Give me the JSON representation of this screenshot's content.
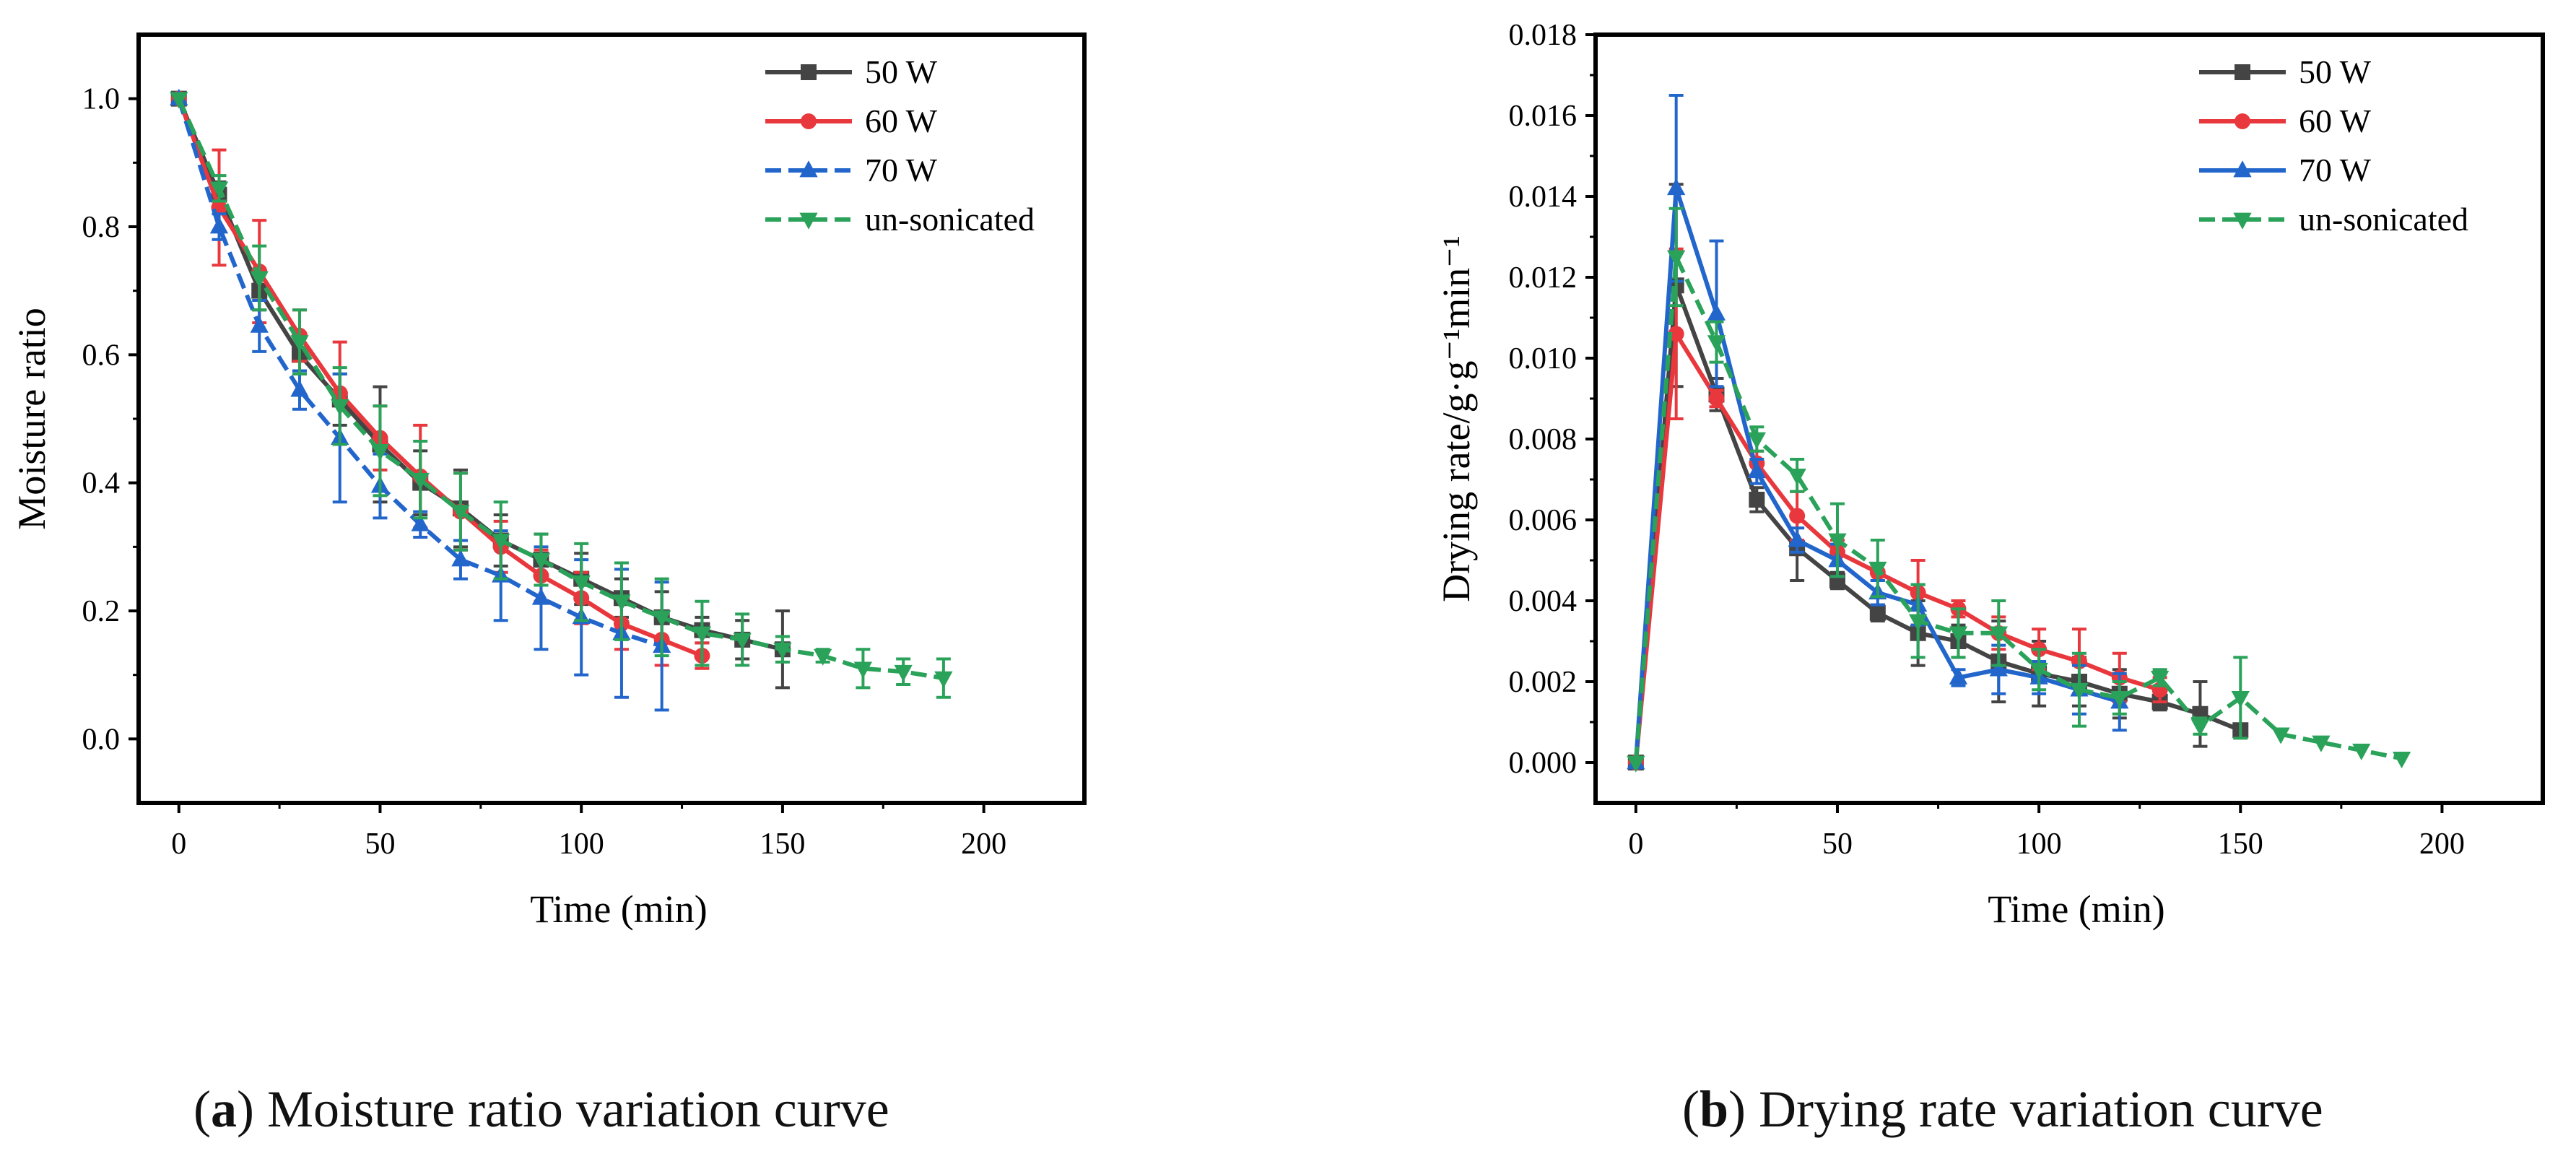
{
  "captions": {
    "a": {
      "open": "(",
      "letter": "a",
      "close": ")",
      "text": " Moisture ratio variation curve"
    },
    "b": {
      "open": "(",
      "letter": "b",
      "close": ")",
      "text": " Drying rate variation curve"
    }
  },
  "chart_data": [
    {
      "id": "a",
      "type": "line",
      "title": "Moisture ratio variation curve",
      "xlabel": "Time (min)",
      "ylabel": "Moisture ratio",
      "xlim": [
        -10,
        225
      ],
      "ylim": [
        -0.1,
        1.1
      ],
      "xticks": [
        0,
        50,
        100,
        150,
        200
      ],
      "xtick_labels": [
        "0",
        "50",
        "100",
        "150",
        "200"
      ],
      "yticks": [
        0.0,
        0.2,
        0.4,
        0.6,
        0.8,
        1.0
      ],
      "ytick_labels": [
        "0.0",
        "0.2",
        "0.4",
        "0.6",
        "0.8",
        "1.0"
      ],
      "legend_position": "top-right",
      "series": [
        {
          "name": "50 W",
          "color": "#444444",
          "marker": "square",
          "dash": "solid",
          "x": [
            0,
            10,
            20,
            30,
            40,
            50,
            60,
            70,
            80,
            90,
            100,
            110,
            120,
            130,
            140,
            150
          ],
          "y": [
            1.0,
            0.85,
            0.7,
            0.6,
            0.53,
            0.46,
            0.4,
            0.36,
            0.31,
            0.28,
            0.25,
            0.22,
            0.19,
            0.17,
            0.155,
            0.14
          ],
          "err": [
            0,
            0.02,
            0.03,
            0.03,
            0.04,
            0.09,
            0.05,
            0.06,
            0.04,
            0.04,
            0.04,
            0.03,
            0.04,
            0.02,
            0.03,
            0.06
          ]
        },
        {
          "name": "60 W",
          "color": "#e8383d",
          "marker": "circle",
          "dash": "solid",
          "x": [
            0,
            10,
            20,
            30,
            40,
            50,
            60,
            70,
            80,
            90,
            100,
            110,
            120,
            130
          ],
          "y": [
            1.0,
            0.83,
            0.73,
            0.63,
            0.54,
            0.47,
            0.41,
            0.355,
            0.3,
            0.255,
            0.22,
            0.18,
            0.155,
            0.13
          ],
          "err": [
            0,
            0.09,
            0.08,
            0.04,
            0.08,
            0.05,
            0.08,
            0.06,
            0.04,
            0.04,
            0.04,
            0.04,
            0.04,
            0.02
          ]
        },
        {
          "name": "70 W",
          "color": "#2266cc",
          "marker": "triangle-up",
          "dash": "dashed",
          "x": [
            0,
            10,
            20,
            30,
            40,
            50,
            60,
            70,
            80,
            90,
            100,
            110,
            120
          ],
          "y": [
            1.0,
            0.8,
            0.645,
            0.545,
            0.47,
            0.395,
            0.335,
            0.28,
            0.255,
            0.22,
            0.19,
            0.165,
            0.145
          ],
          "err": [
            0,
            0.02,
            0.04,
            0.03,
            0.1,
            0.05,
            0.02,
            0.03,
            0.07,
            0.08,
            0.09,
            0.1,
            0.1
          ]
        },
        {
          "name": "un-sonicated",
          "color": "#2aa25a",
          "marker": "triangle-down",
          "dash": "dashed",
          "x": [
            0,
            10,
            20,
            30,
            40,
            50,
            60,
            70,
            80,
            90,
            100,
            110,
            120,
            130,
            140,
            150,
            160,
            170,
            180,
            190
          ],
          "y": [
            1.0,
            0.86,
            0.72,
            0.62,
            0.52,
            0.45,
            0.405,
            0.355,
            0.31,
            0.28,
            0.245,
            0.215,
            0.19,
            0.165,
            0.155,
            0.14,
            0.13,
            0.11,
            0.105,
            0.095
          ],
          "err": [
            0,
            0.02,
            0.05,
            0.05,
            0.06,
            0.07,
            0.06,
            0.06,
            0.06,
            0.04,
            0.06,
            0.06,
            0.06,
            0.05,
            0.04,
            0.02,
            0.01,
            0.03,
            0.02,
            0.03
          ]
        }
      ]
    },
    {
      "id": "b",
      "type": "line",
      "title": "Drying rate variation curve",
      "xlabel": "Time (min)",
      "ylabel": "Drying rate/g·g⁻¹min⁻¹",
      "xlim": [
        -10,
        225
      ],
      "ylim": [
        -0.001,
        0.018
      ],
      "xticks": [
        0,
        50,
        100,
        150,
        200
      ],
      "xtick_labels": [
        "0",
        "50",
        "100",
        "150",
        "200"
      ],
      "yticks": [
        0.0,
        0.002,
        0.004,
        0.006,
        0.008,
        0.01,
        0.012,
        0.014,
        0.016,
        0.018
      ],
      "ytick_labels": [
        "0.000",
        "0.002",
        "0.004",
        "0.006",
        "0.008",
        "0.010",
        "0.012",
        "0.014",
        "0.016",
        "0.018"
      ],
      "legend_position": "top-right",
      "series": [
        {
          "name": "50 W",
          "color": "#444444",
          "marker": "square",
          "dash": "solid",
          "x": [
            0,
            10,
            20,
            30,
            40,
            50,
            60,
            70,
            80,
            90,
            100,
            110,
            120,
            130,
            140,
            150
          ],
          "y": [
            0.0,
            0.0118,
            0.0091,
            0.0065,
            0.0053,
            0.0045,
            0.0037,
            0.0032,
            0.003,
            0.0025,
            0.0022,
            0.002,
            0.0017,
            0.0015,
            0.0012,
            0.0008
          ],
          "err": [
            0,
            0.0025,
            0.0004,
            0.0003,
            0.0008,
            0.0002,
            0.0002,
            0.0008,
            0.0004,
            0.001,
            0.0008,
            0.0006,
            0.0006,
            0.0002,
            0.0008,
            0.0001
          ]
        },
        {
          "name": "60 W",
          "color": "#e8383d",
          "marker": "circle",
          "dash": "solid",
          "x": [
            0,
            10,
            20,
            30,
            40,
            50,
            60,
            70,
            80,
            90,
            100,
            110,
            120,
            130
          ],
          "y": [
            0.0,
            0.0106,
            0.009,
            0.0074,
            0.0061,
            0.0052,
            0.0047,
            0.0042,
            0.0038,
            0.0032,
            0.0028,
            0.0025,
            0.0021,
            0.0018
          ],
          "err": [
            0,
            0.0021,
            0.0002,
            0.0003,
            0.0006,
            0.0003,
            0.0002,
            0.0008,
            0.0002,
            0.0004,
            0.0005,
            0.0008,
            0.0006,
            0.0003
          ]
        },
        {
          "name": "70 W",
          "color": "#2266cc",
          "marker": "triangle-up",
          "dash": "solid",
          "x": [
            0,
            10,
            20,
            30,
            40,
            50,
            60,
            70,
            80,
            90,
            100,
            110,
            120
          ],
          "y": [
            0.0,
            0.0142,
            0.0111,
            0.0072,
            0.0055,
            0.005,
            0.0042,
            0.0039,
            0.0021,
            0.0023,
            0.0021,
            0.0018,
            0.0015
          ],
          "err": [
            0,
            0.0023,
            0.0018,
            0.0003,
            0.0003,
            0.0004,
            0.0003,
            0.0005,
            0.0002,
            0.0006,
            0.0004,
            0.0006,
            0.0007
          ]
        },
        {
          "name": "un-sonicated",
          "color": "#2aa25a",
          "marker": "triangle-down",
          "dash": "dashed",
          "x": [
            0,
            10,
            20,
            30,
            40,
            50,
            60,
            70,
            80,
            90,
            100,
            110,
            120,
            130,
            140,
            150,
            160,
            170,
            180,
            190
          ],
          "y": [
            0.0,
            0.0125,
            0.0104,
            0.008,
            0.0071,
            0.0055,
            0.0048,
            0.0035,
            0.0032,
            0.0032,
            0.0023,
            0.0018,
            0.0016,
            0.0021,
            0.0009,
            0.0016,
            0.0007,
            0.0005,
            0.0003,
            0.0001
          ],
          "err": [
            0,
            0.0012,
            0.0005,
            0.0003,
            0.0004,
            0.0009,
            0.0007,
            0.0009,
            0.0006,
            0.0008,
            0.0005,
            0.0009,
            0.0004,
            0.0002,
            0.0002,
            0.001,
            0,
            0,
            0,
            0
          ]
        }
      ]
    }
  ]
}
